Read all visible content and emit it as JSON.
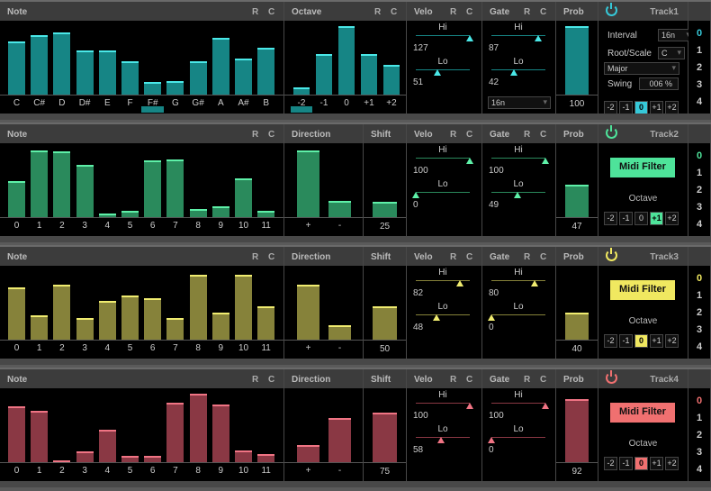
{
  "tracks": [
    {
      "name": "Track1",
      "accent": "#36c8d8",
      "bar": "#168585",
      "top": "#4ae8e8",
      "note": {
        "title": "Note",
        "labels": [
          "C",
          "C#",
          "D",
          "D#",
          "E",
          "F",
          "F#",
          "G",
          "G#",
          "A",
          "A#",
          "B"
        ],
        "values": [
          0.77,
          0.87,
          0.91,
          0.65,
          0.64,
          0.49,
          0.19,
          0.2,
          0.49,
          0.83,
          0.53,
          0.69
        ],
        "selected": 6
      },
      "octave": {
        "title": "Octave",
        "labels": [
          "-2",
          "-1",
          "0",
          "+1",
          "+2"
        ],
        "values": [
          0.1,
          0.59,
          1.0,
          0.59,
          0.43
        ],
        "selected": 0
      },
      "velo": {
        "title": "Velo",
        "hi": "127",
        "lo": "51",
        "hi_pos": 1.0,
        "lo_pos": 0.4
      },
      "gate": {
        "title": "Gate",
        "hi": "87",
        "lo": "42",
        "hi_pos": 0.87,
        "lo_pos": 0.42,
        "dropdown": "16n"
      },
      "prob": {
        "title": "Prob",
        "value": "100",
        "level": 1.0
      },
      "settings": {
        "interval_label": "Interval",
        "interval": "16n",
        "root_label": "Root/Scale",
        "root": "C",
        "scale": "Major",
        "swing_label": "Swing",
        "swing": "006 %"
      },
      "oct_buttons": [
        "-2",
        "-1",
        "0",
        "+1",
        "+2"
      ],
      "oct_selected": 2
    },
    {
      "name": "Track2",
      "accent": "#4ee39a",
      "bar": "#2a8a5c",
      "top": "#5ef0a8",
      "note": {
        "title": "Note",
        "labels": [
          "0",
          "1",
          "2",
          "3",
          "4",
          "5",
          "6",
          "7",
          "8",
          "9",
          "10",
          "11"
        ],
        "values": [
          0.52,
          0.97,
          0.96,
          0.76,
          0.05,
          0.09,
          0.83,
          0.84,
          0.12,
          0.16,
          0.57,
          0.09
        ]
      },
      "direction": {
        "title": "Direction",
        "labels": [
          "+",
          "-"
        ],
        "values": [
          0.97,
          0.24
        ]
      },
      "shift": {
        "title": "Shift",
        "value": "25",
        "level": 0.23
      },
      "velo": {
        "title": "Velo",
        "hi": "100",
        "lo": "0",
        "hi_pos": 1.0,
        "lo_pos": 0.0
      },
      "gate": {
        "title": "Gate",
        "hi": "100",
        "lo": "49",
        "hi_pos": 1.0,
        "lo_pos": 0.49
      },
      "prob": {
        "title": "Prob",
        "value": "47",
        "level": 0.47
      },
      "midi_filter": "Midi Filter",
      "octave_label": "Octave",
      "oct_buttons": [
        "-2",
        "-1",
        "0",
        "+1",
        "+2"
      ],
      "oct_selected": 3
    },
    {
      "name": "Track3",
      "accent": "#f0e860",
      "bar": "#86823a",
      "top": "#f0ec70",
      "note": {
        "title": "Note",
        "labels": [
          "0",
          "1",
          "2",
          "3",
          "4",
          "5",
          "6",
          "7",
          "8",
          "9",
          "10",
          "11"
        ],
        "values": [
          0.76,
          0.35,
          0.8,
          0.32,
          0.57,
          0.64,
          0.6,
          0.32,
          0.95,
          0.39,
          0.95,
          0.49
        ]
      },
      "direction": {
        "title": "Direction",
        "labels": [
          "+",
          "-"
        ],
        "values": [
          0.8,
          0.21
        ]
      },
      "shift": {
        "title": "Shift",
        "value": "50",
        "level": 0.49
      },
      "velo": {
        "title": "Velo",
        "hi": "82",
        "lo": "48",
        "hi_pos": 0.82,
        "lo_pos": 0.38
      },
      "gate": {
        "title": "Gate",
        "hi": "80",
        "lo": "0",
        "hi_pos": 0.8,
        "lo_pos": 0.0
      },
      "prob": {
        "title": "Prob",
        "value": "40",
        "level": 0.4
      },
      "midi_filter": "Midi Filter",
      "octave_label": "Octave",
      "oct_buttons": [
        "-2",
        "-1",
        "0",
        "+1",
        "+2"
      ],
      "oct_selected": 2
    },
    {
      "name": "Track4",
      "accent": "#f07070",
      "bar": "#8a3844",
      "top": "#f07484",
      "note": {
        "title": "Note",
        "labels": [
          "0",
          "1",
          "2",
          "3",
          "4",
          "5",
          "6",
          "7",
          "8",
          "9",
          "10",
          "11"
        ],
        "values": [
          0.81,
          0.75,
          0.03,
          0.16,
          0.48,
          0.09,
          0.09,
          0.87,
          1.0,
          0.84,
          0.17,
          0.12
        ]
      },
      "direction": {
        "title": "Direction",
        "labels": [
          "+",
          "-"
        ],
        "values": [
          0.25,
          0.65
        ]
      },
      "shift": {
        "title": "Shift",
        "value": "75",
        "level": 0.73
      },
      "velo": {
        "title": "Velo",
        "hi": "100",
        "lo": "58",
        "hi_pos": 1.0,
        "lo_pos": 0.46
      },
      "gate": {
        "title": "Gate",
        "hi": "100",
        "lo": "0",
        "hi_pos": 1.0,
        "lo_pos": 0.0
      },
      "prob": {
        "title": "Prob",
        "value": "92",
        "level": 0.92
      },
      "midi_filter": "Midi Filter",
      "octave_label": "Octave",
      "oct_buttons": [
        "-2",
        "-1",
        "0",
        "+1",
        "+2"
      ],
      "oct_selected": 2
    }
  ],
  "rc": {
    "r": "R",
    "c": "C"
  },
  "hilo": {
    "hi": "Hi",
    "lo": "Lo"
  },
  "index_numbers": [
    "0",
    "1",
    "2",
    "3",
    "4"
  ]
}
